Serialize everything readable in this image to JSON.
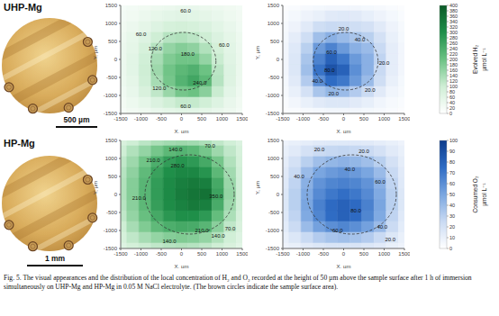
{
  "rows": [
    {
      "label": "UHP-Mg",
      "scale_bar": "500 µm"
    },
    {
      "label": "HP-Mg",
      "scale_bar": "1 mm"
    }
  ],
  "caption": "Fig. 5. The visual appearances and the distribution of the local concentration of H₂ and O₂ recorded at the height of 50 µm above the sample surface after 1 h of immersion simultaneously on UHP-Mg and HP-Mg in 0.05 M NaCl electrolyte. (The brown circles indicate the sample surface area).",
  "colorbars": [
    {
      "label": "Evolved H₂",
      "unit": "µmol L⁻¹",
      "zlim": [
        0,
        400
      ],
      "zticks": [
        0,
        20,
        40,
        60,
        80,
        100,
        120,
        140,
        160,
        180,
        200,
        220,
        240,
        260,
        280,
        300,
        320,
        340,
        360,
        380,
        400
      ],
      "colors": [
        "#ffffff",
        "#cfeed5",
        "#6cc283",
        "#1f8f49",
        "#0b5a27"
      ]
    },
    {
      "label": "Consumed O₂",
      "unit": "µmol L⁻¹",
      "zlim": [
        0,
        100
      ],
      "zticks": [
        0,
        10,
        20,
        30,
        40,
        50,
        60,
        70,
        80,
        90,
        100
      ],
      "colors": [
        "#ffffff",
        "#c9daf3",
        "#7aa6e0",
        "#2f6cc4",
        "#0d3c8c"
      ]
    }
  ],
  "chart_data": [
    {
      "type": "heatmap",
      "xlabel": "X, µm",
      "ylabel": "Y, µm",
      "xlim": [
        -1500,
        1500
      ],
      "ylim": [
        -1500,
        1500
      ],
      "xticks": [
        -1500,
        -1000,
        -500,
        0,
        500,
        1000,
        1500
      ],
      "yticks": [
        -1500,
        -1000,
        -500,
        0,
        500,
        1000,
        1500
      ],
      "x": [
        -1500,
        -1200,
        -900,
        -600,
        -300,
        0,
        300,
        600,
        900,
        1200,
        1500
      ],
      "y": [
        1500,
        1200,
        900,
        600,
        300,
        0,
        -300,
        -600,
        -900,
        -1200,
        -1500
      ],
      "z": [
        [
          20,
          25,
          30,
          35,
          40,
          45,
          45,
          40,
          35,
          30,
          25
        ],
        [
          25,
          30,
          40,
          50,
          58,
          62,
          60,
          55,
          45,
          35,
          28
        ],
        [
          30,
          40,
          55,
          70,
          85,
          90,
          85,
          75,
          60,
          45,
          32
        ],
        [
          35,
          50,
          70,
          100,
          125,
          130,
          120,
          100,
          75,
          55,
          38
        ],
        [
          40,
          55,
          85,
          125,
          160,
          175,
          165,
          130,
          90,
          60,
          40
        ],
        [
          40,
          60,
          95,
          140,
          180,
          195,
          195,
          160,
          105,
          65,
          42
        ],
        [
          40,
          60,
          100,
          150,
          195,
          220,
          235,
          200,
          120,
          70,
          42
        ],
        [
          38,
          55,
          95,
          140,
          190,
          230,
          255,
          220,
          125,
          68,
          40
        ],
        [
          32,
          48,
          80,
          115,
          155,
          190,
          200,
          170,
          105,
          58,
          35
        ],
        [
          26,
          38,
          55,
          75,
          95,
          110,
          110,
          95,
          70,
          45,
          30
        ],
        [
          20,
          28,
          35,
          45,
          55,
          60,
          60,
          55,
          45,
          35,
          25
        ]
      ],
      "contour_labels": [
        {
          "x": 100,
          "y": 1350,
          "value": 60,
          "label": "60.0"
        },
        {
          "x": -1000,
          "y": 700,
          "value": 60,
          "label": "60.0"
        },
        {
          "x": -650,
          "y": 300,
          "value": 120,
          "label": "120.0"
        },
        {
          "x": 150,
          "y": 150,
          "value": 180,
          "label": "180.0"
        },
        {
          "x": 1050,
          "y": 400,
          "value": 60,
          "label": "60.0"
        },
        {
          "x": 450,
          "y": -650,
          "value": 240,
          "label": "240.0"
        },
        {
          "x": -550,
          "y": -800,
          "value": 120,
          "label": "120.0"
        },
        {
          "x": 100,
          "y": -1300,
          "value": 60,
          "label": "60.0"
        }
      ],
      "sample_circle": {
        "x": 50,
        "y": -50,
        "radius": 800
      }
    },
    {
      "type": "heatmap",
      "xlabel": "X, µm",
      "ylabel": "Y, µm",
      "xlim": [
        -1500,
        1500
      ],
      "ylim": [
        -1500,
        1500
      ],
      "xticks": [
        -1500,
        -1000,
        -500,
        0,
        500,
        1000,
        1500
      ],
      "yticks": [
        -1500,
        -1000,
        -500,
        0,
        500,
        1000,
        1500
      ],
      "x": [
        -1500,
        -1200,
        -900,
        -600,
        -300,
        0,
        300,
        600,
        900,
        1200,
        1500
      ],
      "y": [
        1500,
        1200,
        900,
        600,
        300,
        0,
        -300,
        -600,
        -900,
        -1200,
        -1500
      ],
      "z": [
        [
          2,
          3,
          4,
          5,
          6,
          6,
          6,
          5,
          4,
          3,
          2
        ],
        [
          3,
          5,
          8,
          10,
          14,
          15,
          14,
          11,
          8,
          5,
          3
        ],
        [
          4,
          8,
          14,
          22,
          25,
          24,
          22,
          20,
          14,
          8,
          4
        ],
        [
          5,
          12,
          22,
          38,
          45,
          40,
          35,
          30,
          20,
          10,
          5
        ],
        [
          6,
          15,
          30,
          55,
          65,
          55,
          45,
          40,
          25,
          12,
          6
        ],
        [
          6,
          16,
          35,
          65,
          80,
          70,
          55,
          45,
          28,
          12,
          6
        ],
        [
          6,
          16,
          38,
          72,
          88,
          80,
          60,
          45,
          25,
          12,
          6
        ],
        [
          5,
          14,
          32,
          60,
          75,
          70,
          55,
          40,
          22,
          10,
          5
        ],
        [
          4,
          10,
          20,
          35,
          42,
          40,
          32,
          24,
          14,
          7,
          4
        ],
        [
          3,
          6,
          10,
          14,
          16,
          16,
          14,
          11,
          7,
          4,
          3
        ],
        [
          2,
          3,
          4,
          5,
          6,
          6,
          6,
          5,
          4,
          3,
          2
        ]
      ],
      "contour_labels": [
        {
          "x": 0,
          "y": 850,
          "value": 20,
          "label": "20.0"
        },
        {
          "x": 400,
          "y": 550,
          "value": 40,
          "label": "40.0"
        },
        {
          "x": -300,
          "y": 200,
          "value": 60,
          "label": "60.0"
        },
        {
          "x": -350,
          "y": -300,
          "value": 80,
          "label": "80.0"
        },
        {
          "x": 1000,
          "y": -100,
          "value": 20,
          "label": "20.0"
        },
        {
          "x": -650,
          "y": -600,
          "value": 40,
          "label": "40.0"
        },
        {
          "x": -250,
          "y": -950,
          "value": 20,
          "label": "20.0"
        },
        {
          "x": 650,
          "y": -850,
          "value": 20,
          "label": "20.0"
        }
      ],
      "sample_circle": {
        "x": 50,
        "y": -50,
        "radius": 800
      }
    },
    {
      "type": "heatmap",
      "xlabel": "X, µm",
      "ylabel": "Y, µm",
      "xlim": [
        -1500,
        1500
      ],
      "ylim": [
        -1500,
        1500
      ],
      "xticks": [
        -1500,
        -1000,
        -500,
        0,
        500,
        1000,
        1500
      ],
      "yticks": [
        -1500,
        -1000,
        -500,
        0,
        500,
        1000,
        1500
      ],
      "x": [
        -1500,
        -1200,
        -900,
        -600,
        -300,
        0,
        300,
        600,
        900,
        1200,
        1500
      ],
      "y": [
        1500,
        1200,
        900,
        600,
        300,
        0,
        -300,
        -600,
        -900,
        -1200,
        -1500
      ],
      "z": [
        [
          80,
          100,
          120,
          135,
          145,
          150,
          145,
          135,
          115,
          95,
          75
        ],
        [
          100,
          130,
          160,
          190,
          220,
          230,
          220,
          190,
          150,
          115,
          85
        ],
        [
          115,
          150,
          195,
          240,
          275,
          290,
          280,
          250,
          190,
          130,
          90
        ],
        [
          125,
          165,
          215,
          265,
          300,
          315,
          315,
          290,
          220,
          145,
          95
        ],
        [
          130,
          175,
          225,
          275,
          310,
          330,
          340,
          330,
          250,
          155,
          98
        ],
        [
          130,
          175,
          225,
          275,
          310,
          335,
          350,
          355,
          260,
          160,
          98
        ],
        [
          125,
          170,
          220,
          270,
          305,
          325,
          340,
          330,
          245,
          150,
          95
        ],
        [
          115,
          160,
          205,
          250,
          285,
          300,
          300,
          280,
          210,
          135,
          88
        ],
        [
          100,
          140,
          180,
          215,
          240,
          250,
          245,
          225,
          170,
          115,
          80
        ],
        [
          85,
          115,
          140,
          160,
          175,
          180,
          175,
          160,
          130,
          95,
          70
        ],
        [
          70,
          90,
          105,
          115,
          125,
          130,
          125,
          115,
          100,
          80,
          60
        ]
      ],
      "contour_labels": [
        {
          "x": 700,
          "y": 1350,
          "value": 70,
          "label": "70.0"
        },
        {
          "x": -150,
          "y": 1250,
          "value": 140,
          "label": "140.0"
        },
        {
          "x": -700,
          "y": 950,
          "value": 210,
          "label": "210.0"
        },
        {
          "x": -100,
          "y": 800,
          "value": 280,
          "label": "280.0"
        },
        {
          "x": -1050,
          "y": -100,
          "value": 210,
          "label": "210.0"
        },
        {
          "x": 850,
          "y": -50,
          "value": 350,
          "label": "350.0"
        },
        {
          "x": 500,
          "y": -1000,
          "value": 210,
          "label": "210.0"
        },
        {
          "x": 900,
          "y": -1150,
          "value": 140,
          "label": "140.0"
        },
        {
          "x": 1200,
          "y": -950,
          "value": 70,
          "label": "70.0"
        },
        {
          "x": -300,
          "y": -1300,
          "value": 140,
          "label": "140.0"
        }
      ],
      "sample_circle": {
        "x": 200,
        "y": 0,
        "radius": 1100
      }
    },
    {
      "type": "heatmap",
      "xlabel": "X, µm",
      "ylabel": "Y, µm",
      "xlim": [
        -1500,
        1500
      ],
      "ylim": [
        -1500,
        1500
      ],
      "xticks": [
        -1500,
        -1000,
        -500,
        0,
        500,
        1000,
        1500
      ],
      "yticks": [
        -1500,
        -1000,
        -500,
        0,
        500,
        1000,
        1500
      ],
      "x": [
        -1500,
        -1200,
        -900,
        -600,
        -300,
        0,
        300,
        600,
        900,
        1200,
        1500
      ],
      "y": [
        1500,
        1200,
        900,
        600,
        300,
        0,
        -300,
        -600,
        -900,
        -1200,
        -1500
      ],
      "z": [
        [
          8,
          10,
          12,
          14,
          15,
          15,
          15,
          14,
          12,
          10,
          8
        ],
        [
          10,
          14,
          20,
          24,
          26,
          27,
          26,
          24,
          20,
          14,
          10
        ],
        [
          12,
          20,
          30,
          38,
          42,
          44,
          42,
          38,
          30,
          20,
          12
        ],
        [
          14,
          25,
          40,
          50,
          55,
          58,
          55,
          50,
          40,
          25,
          14
        ],
        [
          15,
          28,
          45,
          58,
          64,
          66,
          64,
          58,
          45,
          28,
          15
        ],
        [
          16,
          30,
          48,
          62,
          70,
          74,
          70,
          62,
          48,
          30,
          16
        ],
        [
          16,
          30,
          50,
          66,
          76,
          80,
          76,
          66,
          50,
          30,
          16
        ],
        [
          15,
          28,
          48,
          64,
          75,
          80,
          76,
          64,
          48,
          28,
          15
        ],
        [
          13,
          24,
          40,
          52,
          60,
          64,
          60,
          52,
          40,
          24,
          13
        ],
        [
          10,
          16,
          25,
          32,
          36,
          38,
          36,
          32,
          25,
          16,
          10
        ],
        [
          8,
          10,
          14,
          16,
          18,
          18,
          18,
          16,
          14,
          10,
          8
        ]
      ],
      "contour_labels": [
        {
          "x": -600,
          "y": 1250,
          "value": 20,
          "label": "20.0"
        },
        {
          "x": 500,
          "y": 1200,
          "value": 20,
          "label": "20.0"
        },
        {
          "x": -1100,
          "y": 500,
          "value": 40,
          "label": "40.0"
        },
        {
          "x": 150,
          "y": 700,
          "value": 40,
          "label": "40.0"
        },
        {
          "x": 900,
          "y": 350,
          "value": 60,
          "label": "60.0"
        },
        {
          "x": 300,
          "y": -450,
          "value": 80,
          "label": "80.0"
        },
        {
          "x": -150,
          "y": -1000,
          "value": 60,
          "label": "60.0"
        },
        {
          "x": 950,
          "y": -900,
          "value": 40,
          "label": "40.0"
        },
        {
          "x": 1150,
          "y": -1250,
          "value": 20,
          "label": "20.0"
        }
      ],
      "sample_circle": {
        "x": 200,
        "y": 0,
        "radius": 1100
      }
    }
  ]
}
